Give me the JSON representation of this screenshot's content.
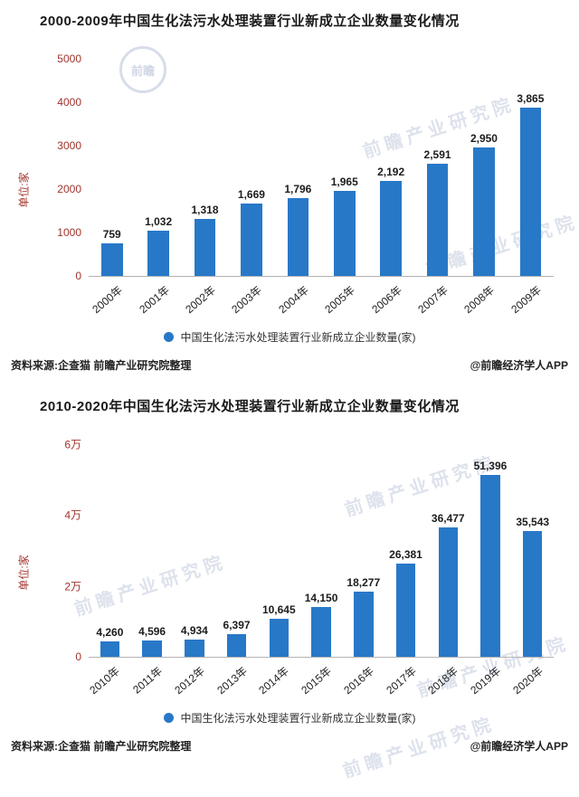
{
  "colors": {
    "bar": "#2878c8",
    "axis_text": "#a0342c"
  },
  "watermark": {
    "brand_text": "前瞻产业研究院",
    "logo_text": "前瞻"
  },
  "chart_data": [
    {
      "type": "bar",
      "title": "2000-2009年中国生化法污水处理装置行业新成立企业数量变化情况",
      "categories": [
        "2000年",
        "2001年",
        "2002年",
        "2003年",
        "2004年",
        "2005年",
        "2006年",
        "2007年",
        "2008年",
        "2009年"
      ],
      "values": [
        759,
        1032,
        1318,
        1669,
        1796,
        1965,
        2192,
        2591,
        2950,
        3865
      ],
      "ylabel": "单位:家",
      "xlabel": "",
      "ylim": [
        0,
        5000
      ],
      "yticks": [
        {
          "label": "0",
          "value": 0
        },
        {
          "label": "1000",
          "value": 1000
        },
        {
          "label": "2000",
          "value": 2000
        },
        {
          "label": "3000",
          "value": 3000
        },
        {
          "label": "4000",
          "value": 4000
        },
        {
          "label": "5000",
          "value": 5000
        }
      ],
      "grid": false,
      "legend_position": "bottom",
      "legend": "中国生化法污水处理装置行业新成立企业数量(家)",
      "source": "资料来源:企查猫 前瞻产业研究院整理",
      "credit": "@前瞻经济学人APP"
    },
    {
      "type": "bar",
      "title": "2010-2020年中国生化法污水处理装置行业新成立企业数量变化情况",
      "categories": [
        "2010年",
        "2011年",
        "2012年",
        "2013年",
        "2014年",
        "2015年",
        "2016年",
        "2017年",
        "2018年",
        "2019年",
        "2020年"
      ],
      "values": [
        4260,
        4596,
        4934,
        6397,
        10645,
        14150,
        18277,
        26381,
        36477,
        51396,
        35543
      ],
      "ylabel": "单位:家",
      "xlabel": "",
      "ylim": [
        0,
        60000
      ],
      "yticks": [
        {
          "label": "0",
          "value": 0
        },
        {
          "label": "2万",
          "value": 20000
        },
        {
          "label": "4万",
          "value": 40000
        },
        {
          "label": "6万",
          "value": 60000
        }
      ],
      "grid": false,
      "legend_position": "bottom",
      "legend": "中国生化法污水处理装置行业新成立企业数量(家)",
      "source": "资料来源:企查猫 前瞻产业研究院整理",
      "credit": "@前瞻经济学人APP"
    }
  ]
}
